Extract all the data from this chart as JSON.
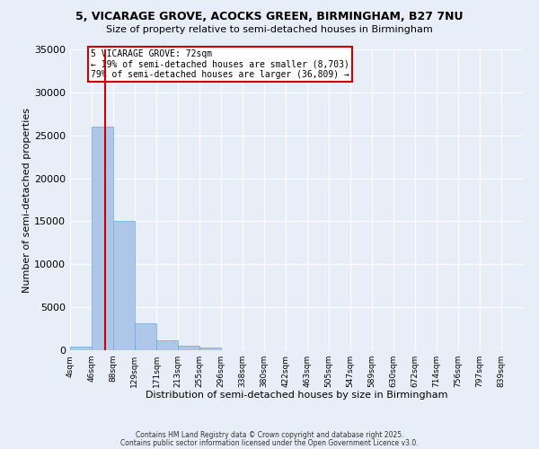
{
  "title_line1": "5, VICARAGE GROVE, ACOCKS GREEN, BIRMINGHAM, B27 7NU",
  "title_line2": "Size of property relative to semi-detached houses in Birmingham",
  "xlabel": "Distribution of semi-detached houses by size in Birmingham",
  "ylabel": "Number of semi-detached properties",
  "bin_labels": [
    "4sqm",
    "46sqm",
    "88sqm",
    "129sqm",
    "171sqm",
    "213sqm",
    "255sqm",
    "296sqm",
    "338sqm",
    "380sqm",
    "422sqm",
    "463sqm",
    "505sqm",
    "547sqm",
    "589sqm",
    "630sqm",
    "672sqm",
    "714sqm",
    "756sqm",
    "797sqm",
    "839sqm"
  ],
  "bin_edges": [
    4,
    46,
    88,
    129,
    171,
    213,
    255,
    296,
    338,
    380,
    422,
    463,
    505,
    547,
    589,
    630,
    672,
    714,
    756,
    797,
    839
  ],
  "bar_heights": [
    400,
    26000,
    15000,
    3100,
    1100,
    500,
    300,
    50,
    0,
    0,
    0,
    0,
    0,
    0,
    0,
    0,
    0,
    0,
    0,
    0
  ],
  "bar_color": "#aec6e8",
  "bar_edgecolor": "#6aaad4",
  "property_size": 72,
  "red_line_color": "#cc0000",
  "annotation_text": "5 VICARAGE GROVE: 72sqm\n← 19% of semi-detached houses are smaller (8,703)\n79% of semi-detached houses are larger (36,809) →",
  "annotation_box_color": "#ffffff",
  "annotation_box_edgecolor": "#cc0000",
  "ylim": [
    0,
    35000
  ],
  "yticks": [
    0,
    5000,
    10000,
    15000,
    20000,
    25000,
    30000,
    35000
  ],
  "background_color": "#e8eef8",
  "grid_color": "#ffffff",
  "footer_line1": "Contains HM Land Registry data © Crown copyright and database right 2025.",
  "footer_line2": "Contains public sector information licensed under the Open Government Licence v3.0."
}
